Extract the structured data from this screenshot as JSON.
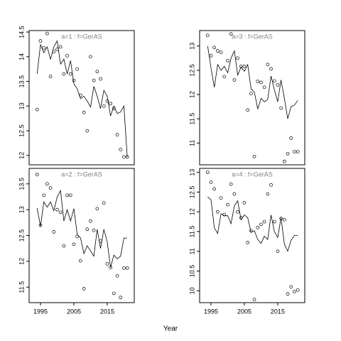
{
  "xlabel": "Year",
  "chart_data": [
    {
      "type": "scatter-line",
      "title": "a=1  :  f=GerAS",
      "x": [
        1994,
        1995,
        1996,
        1997,
        1998,
        1999,
        2000,
        2001,
        2002,
        2003,
        2004,
        2005,
        2006,
        2007,
        2008,
        2009,
        2010,
        2011,
        2012,
        2013,
        2014,
        2015,
        2016,
        2017,
        2018,
        2019,
        2020,
        2021
      ],
      "points": [
        12.93,
        14.32,
        14.18,
        14.47,
        13.6,
        14.1,
        14.15,
        14.2,
        13.65,
        14.02,
        13.65,
        13.52,
        13.75,
        13.22,
        12.87,
        12.5,
        14.0,
        13.52,
        13.7,
        13.55,
        13.0,
        13.1,
        13.05,
        12.95,
        12.42,
        12.12,
        11.97,
        11.97
      ],
      "line": [
        13.65,
        14.25,
        14.08,
        14.2,
        13.95,
        14.2,
        14.32,
        13.85,
        13.95,
        13.65,
        13.92,
        13.45,
        13.35,
        13.15,
        13.2,
        13.1,
        12.98,
        13.4,
        13.2,
        12.95,
        13.32,
        13.2,
        12.8,
        13.0,
        12.85,
        12.88,
        13.0,
        11.97
      ],
      "xlim": [
        1991.6,
        2023.1
      ],
      "ylim": [
        11.81,
        14.53
      ],
      "yticks": [
        12.0,
        12.5,
        13.0,
        13.5,
        14.0,
        14.5
      ]
    },
    {
      "type": "scatter-line",
      "title": "a=2  :  f=GerAS",
      "x": [
        1994,
        1995,
        1996,
        1997,
        1998,
        1999,
        2000,
        2001,
        2002,
        2003,
        2004,
        2005,
        2006,
        2007,
        2008,
        2009,
        2010,
        2011,
        2012,
        2013,
        2014,
        2015,
        2016,
        2017,
        2018,
        2019,
        2020,
        2021
      ],
      "points": [
        13.68,
        12.7,
        13.28,
        13.5,
        13.42,
        12.57,
        13.0,
        12.95,
        12.3,
        13.28,
        13.28,
        12.33,
        12.48,
        12.01,
        11.47,
        12.62,
        12.78,
        12.6,
        13.02,
        12.39,
        13.13,
        11.95,
        11.88,
        11.38,
        11.72,
        11.3,
        11.87,
        11.87
      ],
      "line": [
        13.03,
        12.68,
        13.15,
        13.05,
        13.15,
        12.98,
        13.25,
        13.37,
        12.78,
        13.0,
        12.78,
        13.02,
        12.52,
        12.45,
        12.15,
        12.3,
        12.2,
        12.1,
        12.62,
        12.25,
        12.62,
        12.38,
        11.88,
        12.12,
        12.05,
        12.1,
        12.45,
        12.45
      ],
      "xlim": [
        1991.6,
        2023.1
      ],
      "ylim": [
        11.2,
        13.8
      ],
      "yticks": [
        11.5,
        12.0,
        12.5,
        13.0,
        13.5
      ],
      "xticks": [
        1995,
        2005,
        2015
      ]
    },
    {
      "type": "scatter-line",
      "title": "a=3  :  f=GerAS",
      "x": [
        1994,
        1995,
        1996,
        1997,
        1998,
        1999,
        2000,
        2001,
        2002,
        2003,
        2004,
        2005,
        2006,
        2007,
        2008,
        2009,
        2010,
        2011,
        2012,
        2013,
        2014,
        2015,
        2016,
        2017,
        2018,
        2019,
        2020,
        2021
      ],
      "points": [
        13.22,
        12.8,
        12.97,
        12.9,
        12.87,
        12.37,
        12.7,
        13.25,
        12.3,
        12.75,
        12.58,
        12.58,
        11.68,
        12.02,
        10.72,
        12.27,
        12.25,
        12.15,
        12.62,
        12.53,
        12.28,
        12.2,
        11.72,
        10.62,
        10.78,
        11.1,
        10.82,
        10.82
      ],
      "line": [
        13.0,
        12.55,
        12.15,
        12.62,
        12.5,
        12.58,
        12.45,
        12.75,
        12.9,
        12.4,
        12.57,
        12.48,
        12.62,
        12.12,
        12.05,
        11.7,
        11.92,
        11.85,
        11.9,
        12.38,
        12.1,
        11.85,
        12.3,
        11.92,
        11.5,
        11.75,
        11.78,
        11.88
      ],
      "xlim": [
        1991.6,
        2023.1
      ],
      "ylim": [
        10.55,
        13.32
      ],
      "yticks": [
        11.0,
        11.5,
        12.0,
        12.5,
        13.0
      ]
    },
    {
      "type": "scatter-line",
      "title": "a=4  :  f=GerAS",
      "x": [
        1994,
        1995,
        1996,
        1997,
        1998,
        1999,
        2000,
        2001,
        2002,
        2003,
        2004,
        2005,
        2006,
        2007,
        2008,
        2009,
        2010,
        2011,
        2012,
        2013,
        2014,
        2015,
        2016,
        2017,
        2018,
        2019,
        2020,
        2021
      ],
      "points": [
        13.0,
        12.75,
        12.58,
        12.0,
        12.35,
        11.93,
        12.18,
        12.7,
        12.45,
        12.0,
        11.85,
        12.23,
        11.22,
        11.52,
        9.78,
        11.6,
        11.68,
        11.75,
        12.45,
        12.68,
        11.75,
        11.0,
        11.83,
        11.8,
        9.92,
        10.1,
        9.98,
        10.02
      ],
      "line": [
        12.38,
        12.3,
        11.6,
        11.45,
        11.95,
        11.9,
        11.9,
        11.7,
        12.15,
        12.28,
        11.8,
        11.92,
        11.85,
        11.48,
        11.52,
        11.3,
        11.2,
        11.38,
        11.3,
        11.92,
        11.5,
        11.35,
        11.85,
        11.18,
        11.0,
        11.28,
        11.4,
        11.4
      ],
      "xlim": [
        1991.6,
        2023.1
      ],
      "ylim": [
        9.7,
        13.1
      ],
      "yticks": [
        10.0,
        10.5,
        11.0,
        11.5,
        12.0,
        12.5,
        13.0
      ],
      "xticks": [
        1995,
        2005,
        2015
      ]
    }
  ]
}
